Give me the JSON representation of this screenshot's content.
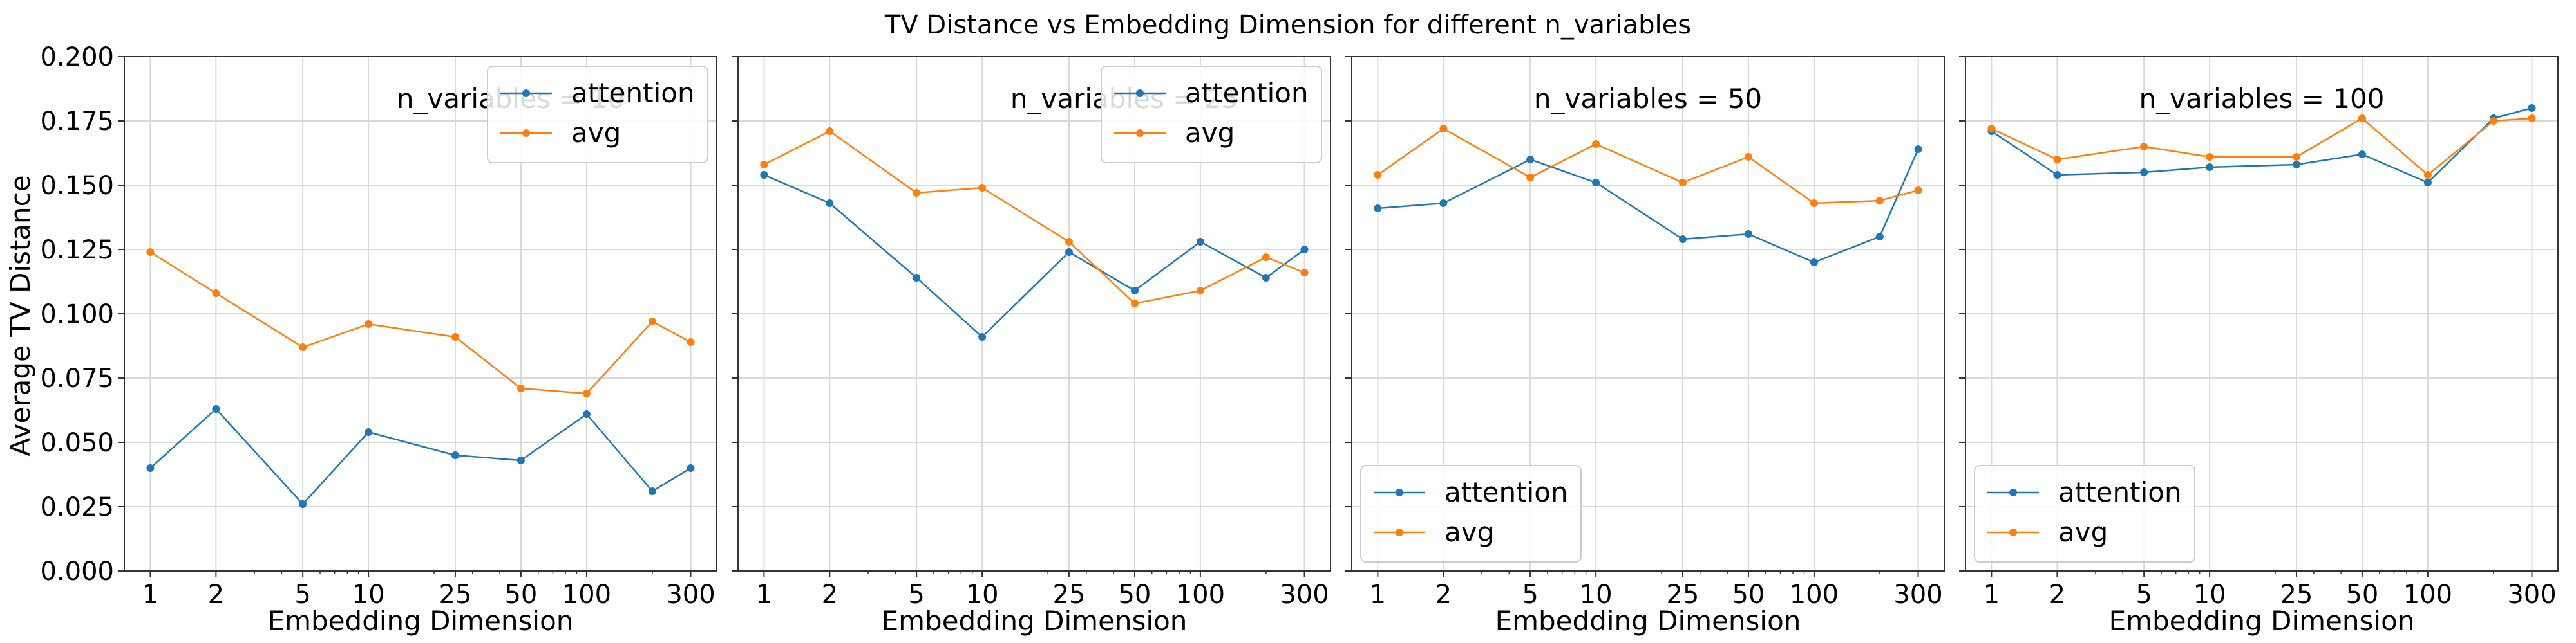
{
  "figure": {
    "title": "TV Distance vs Embedding Dimension for different n_variables",
    "ylabel": "Average TV Distance"
  },
  "chart_data": [
    {
      "type": "line",
      "title": "n_variables = 10",
      "xlabel": "Embedding Dimension",
      "ylabel": "Average TV Distance",
      "xscale": "log",
      "xticks": [
        1,
        2,
        5,
        10,
        25,
        50,
        100,
        300
      ],
      "ylim": [
        0,
        0.2
      ],
      "yticks": [
        "0.000",
        "0.025",
        "0.050",
        "0.075",
        "0.100",
        "0.125",
        "0.150",
        "0.175",
        "0.200"
      ],
      "grid": true,
      "legend_position": "upper right",
      "x": [
        1,
        2,
        5,
        10,
        25,
        50,
        100,
        200,
        300
      ],
      "series": [
        {
          "name": "attention",
          "color": "#1f77b4",
          "values": [
            0.04,
            0.063,
            0.026,
            0.054,
            0.045,
            0.043,
            0.061,
            0.031,
            0.04
          ]
        },
        {
          "name": "avg",
          "color": "#ff7f0e",
          "values": [
            0.124,
            0.108,
            0.087,
            0.096,
            0.091,
            0.071,
            0.069,
            0.097,
            0.089
          ]
        }
      ]
    },
    {
      "type": "line",
      "title": "n_variables = 25",
      "xlabel": "Embedding Dimension",
      "xscale": "log",
      "xticks": [
        1,
        2,
        5,
        10,
        25,
        50,
        100,
        300
      ],
      "ylim": [
        0,
        0.2
      ],
      "grid": true,
      "legend_position": "upper right",
      "x": [
        1,
        2,
        5,
        10,
        25,
        50,
        100,
        200,
        300
      ],
      "series": [
        {
          "name": "attention",
          "color": "#1f77b4",
          "values": [
            0.154,
            0.143,
            0.114,
            0.091,
            0.124,
            0.109,
            0.128,
            0.114,
            0.125
          ]
        },
        {
          "name": "avg",
          "color": "#ff7f0e",
          "values": [
            0.158,
            0.171,
            0.147,
            0.149,
            0.128,
            0.104,
            0.109,
            0.122,
            0.116
          ]
        }
      ]
    },
    {
      "type": "line",
      "title": "n_variables = 50",
      "xlabel": "Embedding Dimension",
      "xscale": "log",
      "xticks": [
        1,
        2,
        5,
        10,
        25,
        50,
        100,
        300
      ],
      "ylim": [
        0,
        0.2
      ],
      "grid": true,
      "legend_position": "lower left",
      "x": [
        1,
        2,
        5,
        10,
        25,
        50,
        100,
        200,
        300
      ],
      "series": [
        {
          "name": "attention",
          "color": "#1f77b4",
          "values": [
            0.141,
            0.143,
            0.16,
            0.151,
            0.129,
            0.131,
            0.12,
            0.13,
            0.164
          ]
        },
        {
          "name": "avg",
          "color": "#ff7f0e",
          "values": [
            0.154,
            0.172,
            0.153,
            0.166,
            0.151,
            0.161,
            0.143,
            0.144,
            0.148
          ]
        }
      ]
    },
    {
      "type": "line",
      "title": "n_variables = 100",
      "xlabel": "Embedding Dimension",
      "xscale": "log",
      "xticks": [
        1,
        2,
        5,
        10,
        25,
        50,
        100,
        300
      ],
      "ylim": [
        0,
        0.2
      ],
      "grid": true,
      "legend_position": "lower left",
      "x": [
        1,
        2,
        5,
        10,
        25,
        50,
        100,
        200,
        300
      ],
      "series": [
        {
          "name": "attention",
          "color": "#1f77b4",
          "values": [
            0.171,
            0.154,
            0.155,
            0.157,
            0.158,
            0.162,
            0.151,
            0.176,
            0.18
          ]
        },
        {
          "name": "avg",
          "color": "#ff7f0e",
          "values": [
            0.172,
            0.16,
            0.165,
            0.161,
            0.161,
            0.176,
            0.154,
            0.175,
            0.176
          ]
        }
      ]
    }
  ]
}
